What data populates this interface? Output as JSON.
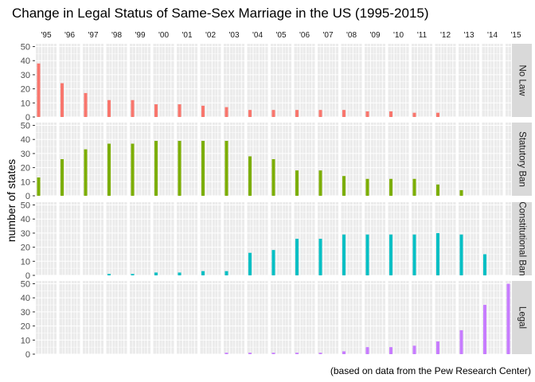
{
  "chart_data": {
    "type": "bar",
    "title": "Change in Legal Status of Same-Sex Marriage in the US (1995-2015)",
    "ylabel": "number of states",
    "caption": "(based on data from the Pew Research Center)",
    "ylim": [
      0,
      52
    ],
    "yticks": [
      0,
      10,
      20,
      30,
      40,
      50
    ],
    "years": [
      "'95",
      "'96",
      "'97",
      "'98",
      "'99",
      "'00",
      "'01",
      "'02",
      "'03",
      "'04",
      "'05",
      "'06",
      "'07",
      "'08",
      "'09",
      "'10",
      "'11",
      "'12",
      "'13",
      "'14",
      "'15"
    ],
    "series": [
      {
        "name": "No Law",
        "color": "#F8766D",
        "values": [
          38,
          24,
          17,
          12,
          12,
          9,
          9,
          8,
          7,
          5,
          5,
          5,
          5,
          5,
          4,
          4,
          3,
          3,
          0,
          0,
          0
        ]
      },
      {
        "name": "Statutory Ban",
        "color": "#7CAE00",
        "values": [
          13,
          26,
          33,
          37,
          37,
          39,
          39,
          39,
          39,
          28,
          26,
          18,
          18,
          14,
          12,
          12,
          12,
          8,
          4,
          0,
          0
        ]
      },
      {
        "name": "Constitutional Ban",
        "color": "#00BFC4",
        "values": [
          0,
          0,
          0,
          1,
          1,
          2,
          2,
          3,
          3,
          16,
          18,
          26,
          26,
          29,
          29,
          29,
          29,
          30,
          29,
          15,
          0
        ]
      },
      {
        "name": "Legal",
        "color": "#C77CFF",
        "values": [
          0,
          0,
          0,
          0,
          0,
          0,
          0,
          0,
          1,
          1,
          1,
          1,
          1,
          2,
          5,
          5,
          6,
          9,
          17,
          35,
          50
        ]
      }
    ],
    "legend": "none",
    "grid": true
  }
}
